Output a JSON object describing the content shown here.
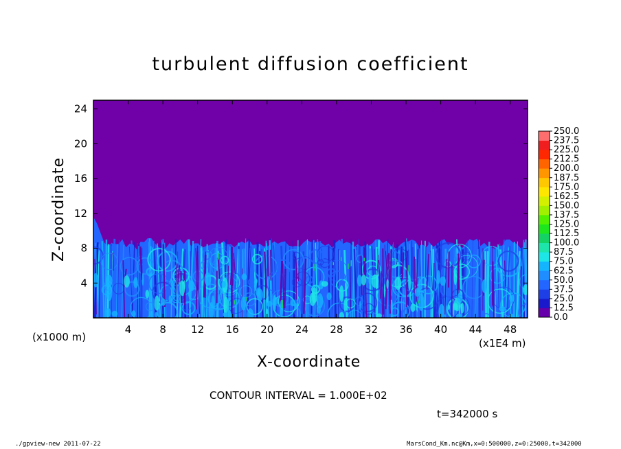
{
  "chart_data": {
    "type": "heatmap",
    "title": "turbulent diffusion coefficient",
    "xlabel": "X-coordinate",
    "ylabel": "Z-coordinate",
    "x_unit_left": "(x1000 m)",
    "x_unit_right": "(x1E4 m)",
    "xlim": [
      0,
      50
    ],
    "ylim": [
      0,
      25
    ],
    "xticks": [
      "4",
      "8",
      "12",
      "16",
      "20",
      "24",
      "28",
      "32",
      "36",
      "40",
      "44",
      "48"
    ],
    "yticks": [
      "4",
      "8",
      "12",
      "16",
      "20",
      "24"
    ],
    "colorbar": {
      "levels": [
        "0.0",
        "12.5",
        "25.0",
        "37.5",
        "50.0",
        "62.5",
        "75.0",
        "87.5",
        "100.0",
        "112.5",
        "125.0",
        "137.5",
        "150.0",
        "162.5",
        "175.0",
        "187.5",
        "200.0",
        "212.5",
        "225.0",
        "237.5",
        "250.0"
      ],
      "colors": [
        "#6600aa",
        "#1a1acc",
        "#1f3fe6",
        "#2266ff",
        "#1f8cff",
        "#14b4ff",
        "#1ee6e6",
        "#1ee6aa",
        "#14d264",
        "#1ee61e",
        "#50f000",
        "#a0f000",
        "#d2f000",
        "#ffe600",
        "#ffc800",
        "#ff9600",
        "#ff6400",
        "#ff2800",
        "#f01e1e",
        "#ff6e6e"
      ]
    },
    "background_color": "#7000a8",
    "mixed_layer_top_approx": 8.5,
    "contour_interval": "CONTOUR INTERVAL = 1.000E+02",
    "time": "t=342000 s"
  },
  "footer": {
    "left": "./gpview-new  2011-07-22",
    "right": "MarsCond_Km.nc@Km,x=0:500000,z=0:25000,t=342000"
  }
}
